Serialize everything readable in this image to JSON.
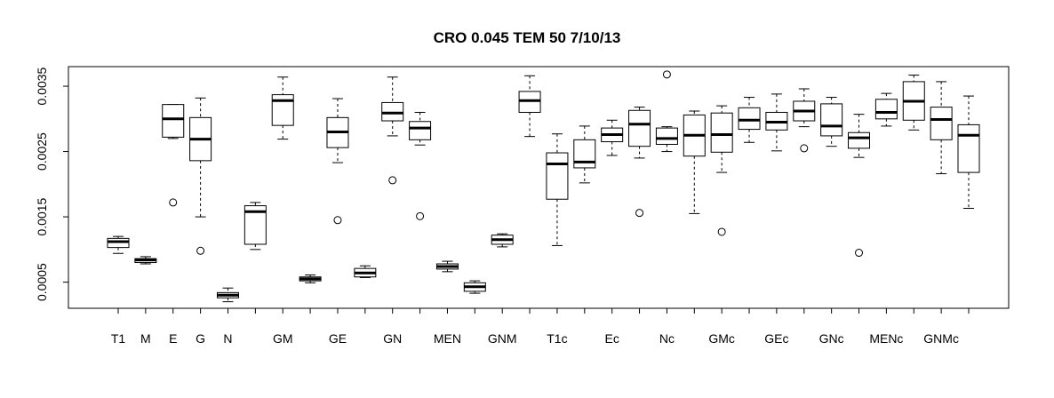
{
  "chart_data": {
    "type": "boxplot",
    "title": "CRO 0.045 TEM 50 7/10/13",
    "xlabel": "",
    "ylabel": "",
    "ylim": [
      0.0001,
      0.0038
    ],
    "y_ticks": [
      "0.0005",
      "0.0015",
      "0.0025",
      "0.0035"
    ],
    "grid": false,
    "x_tick_labels": [
      "T1",
      "M",
      "E",
      "G",
      "N",
      "GM",
      "GE",
      "GN",
      "MEN",
      "GNM",
      "T1c",
      "Ec",
      "Nc",
      "GMc",
      "GEc",
      "GNc",
      "MENc",
      "GNMc"
    ],
    "boxes": [
      {
        "label": "T1",
        "min": 0.00094,
        "q1": 0.00103,
        "median": 0.00112,
        "q3": 0.00117,
        "max": 0.0012,
        "outliers": []
      },
      {
        "label": "M",
        "min": 0.00078,
        "q1": 0.0008,
        "median": 0.00084,
        "q3": 0.00086,
        "max": 0.00089,
        "outliers": []
      },
      {
        "label": "E",
        "min": 0.0027,
        "q1": 0.00272,
        "median": 0.003,
        "q3": 0.00322,
        "max": 0.00322,
        "outliers": [
          0.00172
        ]
      },
      {
        "label": "G",
        "min": 0.0015,
        "q1": 0.00236,
        "median": 0.00269,
        "q3": 0.00302,
        "max": 0.00332,
        "outliers": [
          0.00098
        ]
      },
      {
        "label": "N",
        "min": 0.0002,
        "q1": 0.00026,
        "median": 0.0003,
        "q3": 0.00034,
        "max": 0.00041,
        "outliers": []
      },
      {
        "label": "",
        "min": 0.001,
        "q1": 0.00108,
        "median": 0.00158,
        "q3": 0.00167,
        "max": 0.00172,
        "outliers": []
      },
      {
        "label": "GM",
        "min": 0.00269,
        "q1": 0.0029,
        "median": 0.00328,
        "q3": 0.00337,
        "max": 0.00364,
        "outliers": []
      },
      {
        "label": "",
        "min": 0.00049,
        "q1": 0.00052,
        "median": 0.00055,
        "q3": 0.00058,
        "max": 0.00061,
        "outliers": []
      },
      {
        "label": "GE",
        "min": 0.00233,
        "q1": 0.00256,
        "median": 0.0028,
        "q3": 0.00302,
        "max": 0.00331,
        "outliers": [
          0.00145
        ]
      },
      {
        "label": "",
        "min": 0.00057,
        "q1": 0.00058,
        "median": 0.00064,
        "q3": 0.00071,
        "max": 0.00075,
        "outliers": []
      },
      {
        "label": "GN",
        "min": 0.00274,
        "q1": 0.00297,
        "median": 0.00309,
        "q3": 0.00325,
        "max": 0.00364,
        "outliers": [
          0.00206
        ]
      },
      {
        "label": "",
        "min": 0.0026,
        "q1": 0.00268,
        "median": 0.00286,
        "q3": 0.00296,
        "max": 0.0031,
        "outliers": [
          0.00151
        ]
      },
      {
        "label": "MEN",
        "min": 0.00066,
        "q1": 0.0007,
        "median": 0.00074,
        "q3": 0.00078,
        "max": 0.00082,
        "outliers": []
      },
      {
        "label": "",
        "min": 0.00033,
        "q1": 0.00036,
        "median": 0.00043,
        "q3": 0.00049,
        "max": 0.00052,
        "outliers": []
      },
      {
        "label": "GNM",
        "min": 0.00104,
        "q1": 0.00108,
        "median": 0.00115,
        "q3": 0.00122,
        "max": 0.00124,
        "outliers": []
      },
      {
        "label": "",
        "min": 0.00273,
        "q1": 0.0031,
        "median": 0.00328,
        "q3": 0.00342,
        "max": 0.00366,
        "outliers": []
      },
      {
        "label": "T1c",
        "min": 0.00106,
        "q1": 0.00177,
        "median": 0.00231,
        "q3": 0.00248,
        "max": 0.00277,
        "outliers": []
      },
      {
        "label": "",
        "min": 0.00202,
        "q1": 0.00225,
        "median": 0.00234,
        "q3": 0.00268,
        "max": 0.00289,
        "outliers": []
      },
      {
        "label": "Ec",
        "min": 0.00244,
        "q1": 0.00265,
        "median": 0.00276,
        "q3": 0.00286,
        "max": 0.00298,
        "outliers": []
      },
      {
        "label": "",
        "min": 0.0024,
        "q1": 0.00258,
        "median": 0.00292,
        "q3": 0.00313,
        "max": 0.00318,
        "outliers": [
          0.00156
        ]
      },
      {
        "label": "Nc",
        "min": 0.0025,
        "q1": 0.00261,
        "median": 0.0027,
        "q3": 0.00286,
        "max": 0.00288,
        "outliers": [
          0.00368
        ]
      },
      {
        "label": "",
        "min": 0.00155,
        "q1": 0.00243,
        "median": 0.00275,
        "q3": 0.00306,
        "max": 0.00312,
        "outliers": []
      },
      {
        "label": "GMc",
        "min": 0.00218,
        "q1": 0.00249,
        "median": 0.00276,
        "q3": 0.00309,
        "max": 0.0032,
        "outliers": [
          0.00127
        ]
      },
      {
        "label": "",
        "min": 0.00264,
        "q1": 0.00284,
        "median": 0.00298,
        "q3": 0.00317,
        "max": 0.00333,
        "outliers": []
      },
      {
        "label": "GEc",
        "min": 0.00251,
        "q1": 0.00283,
        "median": 0.00295,
        "q3": 0.0031,
        "max": 0.00338,
        "outliers": []
      },
      {
        "label": "",
        "min": 0.00288,
        "q1": 0.00297,
        "median": 0.00312,
        "q3": 0.00327,
        "max": 0.00346,
        "outliers": [
          0.00255
        ]
      },
      {
        "label": "GNc",
        "min": 0.00258,
        "q1": 0.00274,
        "median": 0.00289,
        "q3": 0.00323,
        "max": 0.00333,
        "outliers": []
      },
      {
        "label": "",
        "min": 0.00241,
        "q1": 0.00255,
        "median": 0.00271,
        "q3": 0.00279,
        "max": 0.00307,
        "outliers": [
          0.00095
        ]
      },
      {
        "label": "MENc",
        "min": 0.00289,
        "q1": 0.003,
        "median": 0.0031,
        "q3": 0.0033,
        "max": 0.00339,
        "outliers": []
      },
      {
        "label": "",
        "min": 0.00283,
        "q1": 0.00298,
        "median": 0.00327,
        "q3": 0.00357,
        "max": 0.00367,
        "outliers": []
      },
      {
        "label": "GNMc",
        "min": 0.00216,
        "q1": 0.00268,
        "median": 0.00299,
        "q3": 0.00318,
        "max": 0.00357,
        "outliers": []
      },
      {
        "label": "",
        "min": 0.00163,
        "q1": 0.00218,
        "median": 0.00275,
        "q3": 0.00291,
        "max": 0.00335,
        "outliers": []
      }
    ],
    "y_axis_side": "left",
    "box_color": "#ffffff",
    "line_color": "#000000"
  }
}
